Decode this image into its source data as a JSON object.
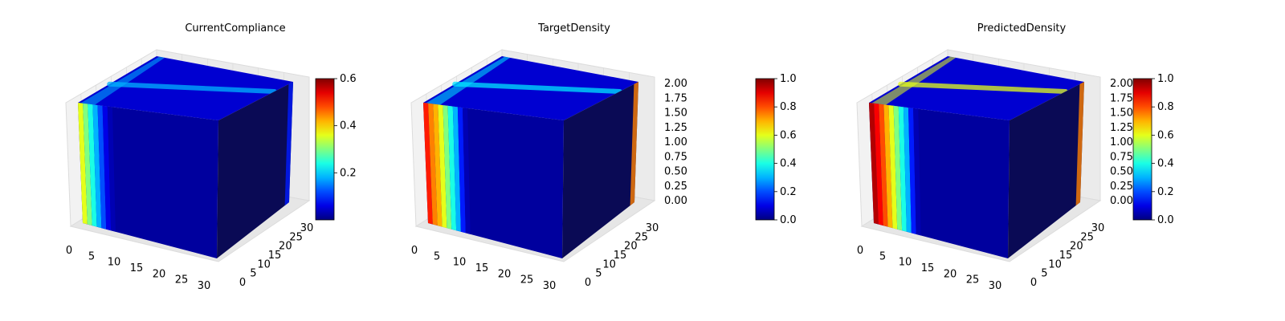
{
  "chart_data": [
    {
      "type": "voxel-3d",
      "title": "CurrentCompliance",
      "xticks": [
        "0",
        "5",
        "10",
        "15",
        "20",
        "25",
        "30"
      ],
      "yticks": [
        "0",
        "5",
        "10",
        "15",
        "20",
        "25",
        "30"
      ],
      "zticks": [],
      "colorbar": {
        "ticks": [
          "0.2",
          "0.4",
          "0.6"
        ],
        "range": [
          0,
          0.6
        ]
      },
      "face_values": {
        "front_left_bands": [
          0.6,
          0.5,
          0.4,
          0.3,
          0.2,
          0.1,
          0.05
        ],
        "top_band": 0.3,
        "right_edge": 0.15
      }
    },
    {
      "type": "voxel-3d",
      "title": "TargetDensity",
      "xticks": [
        "0",
        "5",
        "10",
        "15",
        "20",
        "25",
        "30"
      ],
      "yticks": [
        "0",
        "5",
        "10",
        "15",
        "20",
        "25",
        "30"
      ],
      "zticks": [
        "0.00",
        "0.25",
        "0.50",
        "0.75",
        "1.00",
        "1.25",
        "1.50",
        "1.75",
        "2.00"
      ],
      "colorbar": {
        "ticks": [
          "0.0",
          "0.2",
          "0.4",
          "0.6",
          "0.8",
          "1.0"
        ],
        "range": [
          0,
          1
        ]
      },
      "face_values": {
        "front_left_bands": [
          0.85,
          0.75,
          0.7,
          0.6,
          0.5,
          0.4,
          0.3,
          0.15,
          0.05
        ],
        "top_band": 0.35,
        "right_edge": 0.75
      }
    },
    {
      "type": "voxel-3d",
      "title": "PredictedDensity",
      "xticks": [
        "0",
        "5",
        "10",
        "15",
        "20",
        "25",
        "30"
      ],
      "yticks": [
        "0",
        "5",
        "10",
        "15",
        "20",
        "25",
        "30"
      ],
      "zticks": [
        "0.00",
        "0.25",
        "0.50",
        "0.75",
        "1.00",
        "1.25",
        "1.50",
        "1.75",
        "2.00"
      ],
      "colorbar": {
        "ticks": [
          "0.0",
          "0.2",
          "0.4",
          "0.6",
          "0.8",
          "1.0"
        ],
        "range": [
          0,
          1
        ]
      },
      "face_values": {
        "front_left_bands": [
          0.95,
          0.88,
          0.8,
          0.7,
          0.6,
          0.5,
          0.4,
          0.3,
          0.15,
          0.05
        ],
        "top_band": 0.6,
        "right_edge": 0.75
      }
    }
  ],
  "colors": {
    "cmap": "jet"
  }
}
